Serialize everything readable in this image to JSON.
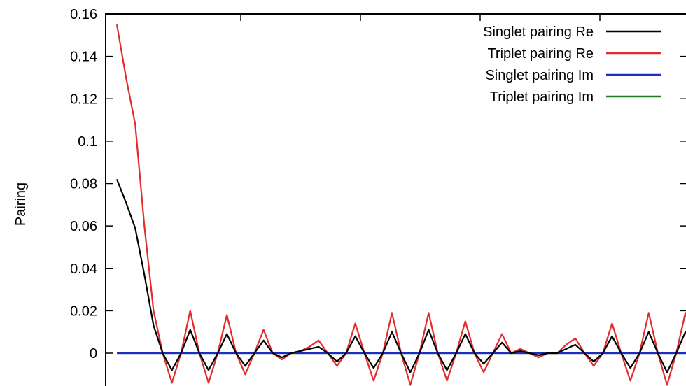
{
  "chart_data": {
    "type": "line",
    "xlabel": "",
    "ylabel": "Pairing",
    "ylim": [
      -0.0175,
      0.16
    ],
    "yticks": [
      {
        "value": 0.16,
        "label": "0.16"
      },
      {
        "value": 0.14,
        "label": "0.14"
      },
      {
        "value": 0.12,
        "label": "0.12"
      },
      {
        "value": 0.1,
        "label": "0.1"
      },
      {
        "value": 0.08,
        "label": "0.08"
      },
      {
        "value": 0.06,
        "label": "0.06"
      },
      {
        "value": 0.04,
        "label": "0.04"
      },
      {
        "value": 0.02,
        "label": "0.02"
      },
      {
        "value": 0,
        "label": "0"
      }
    ],
    "grid": false,
    "legend_position": "top-right",
    "x": [
      0,
      1,
      2,
      3,
      4,
      5,
      6,
      7,
      8,
      9,
      10,
      11,
      12,
      13,
      14,
      15,
      16,
      17,
      18,
      19,
      20,
      21,
      22,
      23,
      24,
      25,
      26,
      27,
      28,
      29,
      30,
      31,
      32,
      33,
      34,
      35,
      36,
      37,
      38,
      39,
      40,
      41,
      42,
      43,
      44,
      45,
      46,
      47,
      48,
      49,
      50,
      51,
      52,
      53,
      54,
      55,
      56,
      57,
      58,
      59,
      60,
      61,
      62,
      63
    ],
    "series": [
      {
        "name": "Singlet pairing Re",
        "color": "#000000",
        "values": [
          0.082,
          0.071,
          0.059,
          0.037,
          0.013,
          0,
          -0.008,
          0,
          0.011,
          0,
          -0.008,
          0,
          0.009,
          0,
          -0.006,
          0,
          0.006,
          0,
          -0.002,
          0,
          0.001,
          0.002,
          0.003,
          0,
          -0.004,
          0,
          0.008,
          0,
          -0.007,
          0,
          0.01,
          0,
          -0.009,
          0,
          0.011,
          0,
          -0.008,
          0,
          0.009,
          0,
          -0.005,
          0,
          0.005,
          0,
          0.001,
          0,
          -0.001,
          0,
          0,
          0.002,
          0.004,
          0,
          -0.004,
          0,
          0.008,
          0,
          -0.007,
          0,
          0.01,
          0,
          -0.009,
          0,
          0.01,
          0
        ]
      },
      {
        "name": "Triplet pairing Re",
        "color": "#e32b2b",
        "values": [
          0.155,
          0.13,
          0.108,
          0.06,
          0.02,
          0,
          -0.014,
          0,
          0.02,
          0,
          -0.014,
          0,
          0.018,
          0,
          -0.01,
          0,
          0.011,
          0,
          -0.003,
          0,
          0.001,
          0.003,
          0.006,
          0,
          -0.006,
          0,
          0.014,
          0,
          -0.013,
          0,
          0.019,
          0,
          -0.015,
          0,
          0.019,
          0,
          -0.013,
          0,
          0.015,
          0,
          -0.009,
          0,
          0.009,
          0,
          0.002,
          0,
          -0.002,
          0,
          0,
          0.004,
          0.007,
          0,
          -0.006,
          0,
          0.014,
          0,
          -0.013,
          0,
          0.019,
          0,
          -0.015,
          0,
          0.019,
          0
        ]
      },
      {
        "name": "Singlet pairing Im",
        "color": "#1f2bc2",
        "values": [
          0,
          0,
          0,
          0,
          0,
          0,
          0,
          0,
          0,
          0,
          0,
          0,
          0,
          0,
          0,
          0,
          0,
          0,
          0,
          0,
          0,
          0,
          0,
          0,
          0,
          0,
          0,
          0,
          0,
          0,
          0,
          0,
          0,
          0,
          0,
          0,
          0,
          0,
          0,
          0,
          0,
          0,
          0,
          0,
          0,
          0,
          0,
          0,
          0,
          0,
          0,
          0,
          0,
          0,
          0,
          0,
          0,
          0,
          0,
          0,
          0,
          0,
          0,
          0
        ]
      },
      {
        "name": "Triplet pairing Im",
        "color": "#1e7a1e",
        "values": [
          0,
          0,
          0,
          0,
          0,
          0,
          0,
          0,
          0,
          0,
          0,
          0,
          0,
          0,
          0,
          0,
          0,
          0,
          0,
          0,
          0,
          0,
          0,
          0,
          0,
          0,
          0,
          0,
          0,
          0,
          0,
          0,
          0,
          0,
          0,
          0,
          0,
          0,
          0,
          0,
          0,
          0,
          0,
          0,
          0,
          0,
          0,
          0,
          0,
          0,
          0,
          0,
          0,
          0,
          0,
          0,
          0,
          0,
          0,
          0,
          0,
          0,
          0,
          0
        ]
      }
    ]
  }
}
